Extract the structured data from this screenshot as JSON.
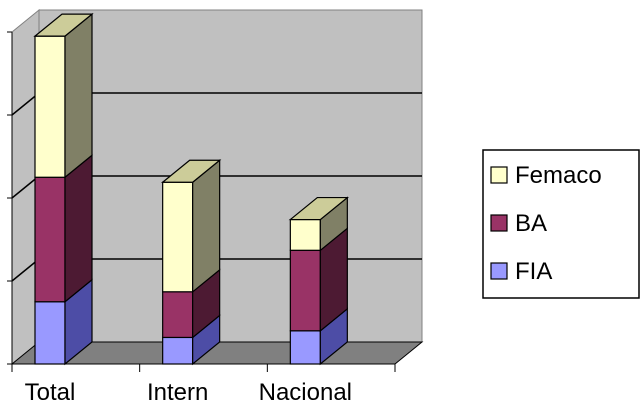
{
  "chart_data": {
    "type": "bar",
    "stacked": true,
    "three_d": true,
    "categories": [
      "Total",
      "Intern",
      "Nacional"
    ],
    "series": [
      {
        "name": "FIA",
        "values": [
          0.75,
          0.32,
          0.4
        ],
        "color": "#9999ff",
        "side_color": "#4d4da6",
        "top_color": "#b3b3ff"
      },
      {
        "name": "BA",
        "values": [
          1.5,
          0.55,
          0.97
        ],
        "color": "#993366",
        "side_color": "#4d1a33",
        "top_color": "#b3668a"
      },
      {
        "name": "Femaco",
        "values": [
          1.7,
          1.32,
          0.37
        ],
        "color": "#ffffcc",
        "side_color": "#808066",
        "top_color": "#cccc99"
      }
    ],
    "ylim": [
      0,
      4
    ],
    "y_ticks": [
      0,
      1,
      2,
      3,
      4
    ],
    "grid": true,
    "legend_position": "right",
    "colors": {
      "wall": "#c0c0c0",
      "floor": "#808080",
      "gridline": "#000000"
    }
  }
}
